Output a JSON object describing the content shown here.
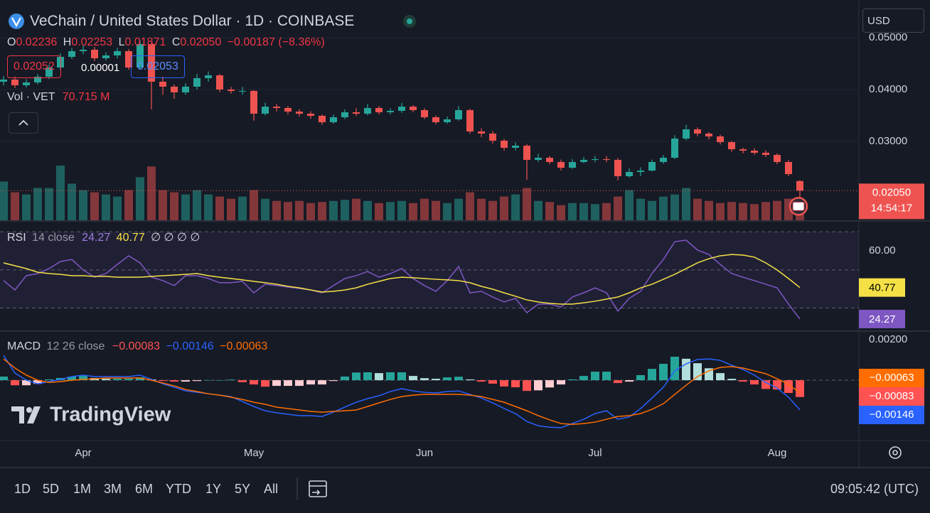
{
  "chart_data": [
    {
      "type": "candlestick",
      "legend": {
        "title": "VeChain / United States Dollar · 1D · COINBASE",
        "open_key": "O",
        "open": "0.02236",
        "high_key": "H",
        "high": "0.02253",
        "low_key": "L",
        "low": "0.01871",
        "close_key": "C",
        "close": "0.02050",
        "change": "−0.00187 (−8.36%)",
        "bid": "0.02052",
        "spread": "0.00001",
        "ask": "0.02053",
        "vol_key": "Vol · VET",
        "vol": "70.715 M"
      },
      "countdown": "14:54:17",
      "currency": "USD",
      "up_color": "#26a69a",
      "down_color": "#ef5350",
      "categories": [
        null,
        null,
        null,
        null,
        null,
        null,
        null,
        "Apr",
        null,
        null,
        null,
        null,
        null,
        null,
        null,
        null,
        null,
        null,
        null,
        null,
        null,
        null,
        "May",
        null,
        null,
        null,
        null,
        null,
        null,
        null,
        null,
        null,
        null,
        null,
        null,
        null,
        null,
        "Jun",
        null,
        null,
        null,
        null,
        null,
        null,
        null,
        null,
        null,
        null,
        null,
        null,
        null,
        null,
        "Jul",
        null,
        null,
        null,
        null,
        null,
        null,
        null,
        null,
        null,
        null,
        null,
        null,
        null,
        null,
        null,
        "Aug",
        null,
        null
      ],
      "open": [
        0.0415,
        0.04192,
        0.04082,
        0.04137,
        0.04247,
        0.04425,
        0.0463,
        0.0474,
        0.04767,
        0.04603,
        0.04658,
        0.0474,
        0.04425,
        0.04877,
        0.04151,
        0.04055,
        0.03945,
        0.04055,
        0.04219,
        0.04274,
        0.04,
        0.03973,
        0.03973,
        0.03534,
        0.03671,
        0.03644,
        0.03575,
        0.03534,
        0.03493,
        0.0337,
        0.03466,
        0.03562,
        0.03534,
        0.03644,
        0.03562,
        0.03589,
        0.03671,
        0.03603,
        0.03466,
        0.0337,
        0.03425,
        0.03603,
        0.03192,
        0.03151,
        0.03014,
        0.02877,
        0.02918,
        0.02644,
        0.02685,
        0.02603,
        0.02493,
        0.02603,
        0.02644,
        0.02658,
        0.02644,
        0.02329,
        0.02411,
        0.02438,
        0.02603,
        0.02685,
        0.03055,
        0.03233,
        0.03151,
        0.03096,
        0.02986,
        0.02849,
        0.02822,
        0.02781,
        0.0274,
        0.02603,
        0.02236
      ],
      "high": [
        0.0426,
        0.0425,
        0.042,
        0.043,
        0.0448,
        0.047,
        0.048,
        0.0485,
        0.0482,
        0.0472,
        0.048,
        0.0478,
        0.0495,
        0.049,
        0.0425,
        0.041,
        0.0412,
        0.043,
        0.0435,
        0.043,
        0.0405,
        0.0405,
        0.0399,
        0.0375,
        0.0372,
        0.0368,
        0.0362,
        0.0358,
        0.0352,
        0.0352,
        0.0362,
        0.0364,
        0.0372,
        0.0368,
        0.0364,
        0.0374,
        0.037,
        0.0364,
        0.035,
        0.0348,
        0.0368,
        0.0363,
        0.0325,
        0.032,
        0.0305,
        0.0298,
        0.0295,
        0.0276,
        0.0272,
        0.0265,
        0.0266,
        0.027,
        0.0272,
        0.0272,
        0.0268,
        0.0248,
        0.025,
        0.0265,
        0.0274,
        0.0312,
        0.0332,
        0.0327,
        0.0318,
        0.0313,
        0.0301,
        0.0288,
        0.0287,
        0.0283,
        0.0277,
        0.0264,
        0.02253
      ],
      "low": [
        0.0408,
        0.0403,
        0.0404,
        0.041,
        0.042,
        0.0438,
        0.0459,
        0.0468,
        0.0455,
        0.0456,
        0.046,
        0.0438,
        0.044,
        0.0362,
        0.039,
        0.0382,
        0.039,
        0.04,
        0.0415,
        0.0395,
        0.0392,
        0.039,
        0.034,
        0.035,
        0.0358,
        0.0352,
        0.0348,
        0.0344,
        0.0332,
        0.0334,
        0.0343,
        0.0349,
        0.035,
        0.0352,
        0.0352,
        0.0355,
        0.0356,
        0.0343,
        0.0333,
        0.0334,
        0.034,
        0.0315,
        0.0308,
        0.0296,
        0.0282,
        0.0283,
        0.0226,
        0.026,
        0.0256,
        0.0244,
        0.0247,
        0.0258,
        0.026,
        0.026,
        0.0225,
        0.023,
        0.0233,
        0.0242,
        0.0257,
        0.0266,
        0.0302,
        0.031,
        0.0304,
        0.0294,
        0.028,
        0.0277,
        0.0274,
        0.027,
        0.0256,
        0.0233,
        0.01871
      ],
      "close": [
        0.04192,
        0.04082,
        0.04137,
        0.04247,
        0.04425,
        0.0463,
        0.0474,
        0.04767,
        0.04603,
        0.04658,
        0.0474,
        0.04425,
        0.04877,
        0.04151,
        0.04055,
        0.03945,
        0.04055,
        0.04219,
        0.04274,
        0.04,
        0.03973,
        0.03973,
        0.03534,
        0.03671,
        0.03644,
        0.03575,
        0.03534,
        0.03493,
        0.0337,
        0.03466,
        0.03562,
        0.03534,
        0.03644,
        0.03562,
        0.03589,
        0.03671,
        0.03603,
        0.03466,
        0.0337,
        0.03425,
        0.03603,
        0.03192,
        0.03151,
        0.03014,
        0.02877,
        0.02918,
        0.02644,
        0.02685,
        0.02603,
        0.02493,
        0.02603,
        0.02644,
        0.02658,
        0.02644,
        0.02329,
        0.02411,
        0.02438,
        0.02603,
        0.02685,
        0.03055,
        0.03233,
        0.03151,
        0.03096,
        0.02986,
        0.02849,
        0.02822,
        0.02781,
        0.0274,
        0.02603,
        0.0237,
        0.0205
      ],
      "volumes": [
        180,
        130,
        120,
        150,
        150,
        254,
        170,
        140,
        130,
        120,
        110,
        140,
        200,
        250,
        140,
        130,
        120,
        140,
        120,
        110,
        100,
        110,
        140,
        100,
        90,
        85,
        90,
        80,
        85,
        90,
        95,
        100,
        90,
        80,
        85,
        90,
        80,
        100,
        90,
        80,
        100,
        130,
        100,
        90,
        110,
        120,
        150,
        90,
        85,
        70,
        80,
        80,
        75,
        80,
        110,
        140,
        100,
        90,
        110,
        120,
        150,
        100,
        90,
        80,
        85,
        80,
        75,
        85,
        90,
        100,
        70.715
      ],
      "vlim": [
        0,
        330
      ],
      "ylim": [
        0.0148,
        0.05726
      ],
      "yticks": [
        {
          "value": 0.03,
          "label": "0.03000"
        },
        {
          "value": 0.04,
          "label": "0.04000"
        },
        {
          "value": 0.05,
          "label": "0.05000"
        }
      ],
      "grid": true
    },
    {
      "type": "line",
      "title": "RSI",
      "params": "14 close",
      "extra": "∅ ∅ ∅ ∅",
      "ylim": [
        18.3,
        75.3
      ],
      "yticks": [
        {
          "value": 60,
          "label": "60.00"
        }
      ],
      "levels": [
        70,
        50,
        30
      ],
      "band_color": "#7e57c2",
      "series": [
        {
          "color": "#7e57c2",
          "values": [
            44.4,
            39.5,
            47.0,
            48.1,
            50.7,
            54.4,
            55.5,
            50.0,
            46.2,
            48.1,
            52.9,
            57.4,
            53.7,
            46.2,
            44.4,
            41.8,
            47.0,
            47.0,
            45.5,
            43.3,
            43.3,
            44.0,
            38.0,
            42.5,
            41.8,
            41.0,
            40.3,
            39.5,
            38.0,
            41.8,
            45.5,
            47.0,
            49.2,
            46.2,
            48.1,
            50.7,
            45.5,
            41.8,
            38.8,
            44.4,
            51.8,
            38.0,
            38.8,
            35.8,
            33.2,
            35.1,
            27.6,
            32.1,
            32.1,
            30.6,
            35.8,
            38.0,
            40.6,
            38.0,
            28.4,
            35.1,
            38.8,
            48.1,
            55.5,
            64.8,
            65.6,
            60.4,
            58.1,
            52.9,
            48.1,
            46.2,
            44.4,
            42.5,
            40.6,
            32.1,
            24.27
          ]
        },
        {
          "color": "#f5e146",
          "values": [
            53.7,
            52.2,
            50.7,
            48.8,
            48.1,
            47.7,
            47.0,
            47.0,
            46.6,
            46.6,
            46.2,
            46.2,
            46.2,
            46.6,
            47.0,
            47.3,
            47.7,
            48.1,
            47.0,
            46.2,
            45.5,
            44.8,
            44.0,
            43.3,
            42.5,
            41.4,
            40.6,
            39.5,
            38.4,
            38.8,
            39.5,
            40.6,
            42.5,
            44.0,
            45.5,
            46.2,
            45.9,
            45.5,
            45.1,
            44.8,
            44.4,
            43.3,
            41.4,
            39.9,
            38.0,
            36.2,
            34.3,
            33.2,
            32.5,
            32.1,
            32.1,
            32.8,
            33.6,
            34.7,
            35.8,
            38.0,
            40.6,
            42.5,
            45.1,
            47.7,
            50.7,
            53.7,
            55.9,
            57.4,
            58.1,
            57.8,
            56.7,
            53.7,
            50.0,
            45.5,
            40.77
          ]
        }
      ]
    },
    {
      "type": "combo",
      "title": "MACD",
      "params": "12 26 close",
      "ylim": [
        -0.00298,
        0.00239
      ],
      "yticks": [
        {
          "value": 0.002,
          "label": "0.00200"
        }
      ],
      "levels": [
        0
      ],
      "series": [
        {
          "type": "bar",
          "colors": [
            "#26a69a",
            "#b2dfdb",
            "#ff5252",
            "#ffcdd2"
          ],
          "last_label": "−0.00083",
          "values": [
            0.00018,
            -0.00025,
            -0.00025,
            -0.00018,
            4e-05,
            0.00011,
            0.00018,
            0.00021,
            0.00011,
            7e-05,
            7e-05,
            7e-05,
            0.00014,
            4e-05,
            -4e-05,
            -7e-05,
            -7e-05,
            -4e-05,
            0.0,
            0.0,
            3e-05,
            -0.0001,
            -0.00021,
            -0.00032,
            -0.00028,
            -0.00028,
            -0.00028,
            -0.00021,
            -0.00021,
            -4e-05,
            0.00018,
            0.00038,
            0.00039,
            0.00035,
            0.00039,
            0.00039,
            0.00021,
            0.0001,
            7e-05,
            0.00014,
            0.00017,
            4e-05,
            -7e-05,
            -0.00017,
            -0.00031,
            -0.00035,
            -0.00053,
            -0.0005,
            -0.00036,
            -0.00021,
            4e-05,
            0.00021,
            0.00042,
            0.00042,
            -0.00014,
            -7e-05,
            0.00025,
            0.00056,
            0.00081,
            0.00116,
            0.00106,
            0.00084,
            0.00059,
            0.00035,
            7e-05,
            -7e-05,
            -0.00021,
            -0.00043,
            -0.00046,
            -0.00063,
            -0.00083
          ]
        },
        {
          "type": "line",
          "color": "#2962ff",
          "last_label": "−0.00146",
          "values": [
            0.00123,
            0.00035,
            0.0,
            -0.00018,
            -7e-05,
            4e-05,
            0.00018,
            0.00025,
            0.00018,
            0.00018,
            0.00018,
            0.00018,
            0.00025,
            4e-05,
            -0.00018,
            -0.00035,
            -0.00053,
            -0.0006,
            -0.00067,
            -0.00074,
            -0.00081,
            -0.00105,
            -0.0013,
            -0.00151,
            -0.00161,
            -0.00168,
            -0.00175,
            -0.00175,
            -0.00179,
            -0.00158,
            -0.00133,
            -0.00109,
            -0.00091,
            -0.00077,
            -0.00056,
            -0.00042,
            -0.00053,
            -0.0006,
            -0.00063,
            -0.00056,
            -0.00053,
            -0.0007,
            -0.00088,
            -0.00112,
            -0.0014,
            -0.00165,
            -0.00204,
            -0.00225,
            -0.00232,
            -0.00235,
            -0.00214,
            -0.00193,
            -0.00165,
            -0.00151,
            -0.00193,
            -0.00182,
            -0.0014,
            -0.00088,
            -0.00035,
            0.00046,
            0.00081,
            0.00102,
            0.00105,
            0.00098,
            0.00074,
            0.00053,
            0.00025,
            -0.00011,
            -0.00039,
            -0.00084,
            -0.00146
          ]
        },
        {
          "type": "line",
          "color": "#ff6d00",
          "last_label": "−0.00063",
          "values": [
            0.00105,
            0.0006,
            0.00025,
            0.0,
            -0.00011,
            -7e-05,
            0.0,
            4e-05,
            7e-05,
            0.00011,
            0.00011,
            0.00011,
            0.00011,
            0.0,
            -0.00014,
            -0.00028,
            -0.00046,
            -0.00056,
            -0.00067,
            -0.00074,
            -0.00084,
            -0.00095,
            -0.00109,
            -0.00119,
            -0.00133,
            -0.0014,
            -0.00147,
            -0.00154,
            -0.00158,
            -0.00154,
            -0.00151,
            -0.00147,
            -0.0013,
            -0.00112,
            -0.00095,
            -0.00081,
            -0.00074,
            -0.0007,
            -0.0007,
            -0.0007,
            -0.0007,
            -0.00074,
            -0.00081,
            -0.00095,
            -0.00109,
            -0.0013,
            -0.00151,
            -0.00175,
            -0.00196,
            -0.00214,
            -0.00218,
            -0.00214,
            -0.00207,
            -0.00193,
            -0.00179,
            -0.00175,
            -0.00165,
            -0.00144,
            -0.00116,
            -0.0007,
            -0.00025,
            0.00018,
            0.00046,
            0.00063,
            0.00067,
            0.0006,
            0.00046,
            0.00032,
            7e-05,
            -0.00021,
            -0.00063
          ]
        }
      ]
    }
  ],
  "watermark": "TradingView",
  "toolbar": {
    "timeframes": [
      "1D",
      "5D",
      "1M",
      "3M",
      "6M",
      "YTD",
      "1Y",
      "5Y",
      "All"
    ],
    "clock": "09:05:42 (UTC)"
  }
}
